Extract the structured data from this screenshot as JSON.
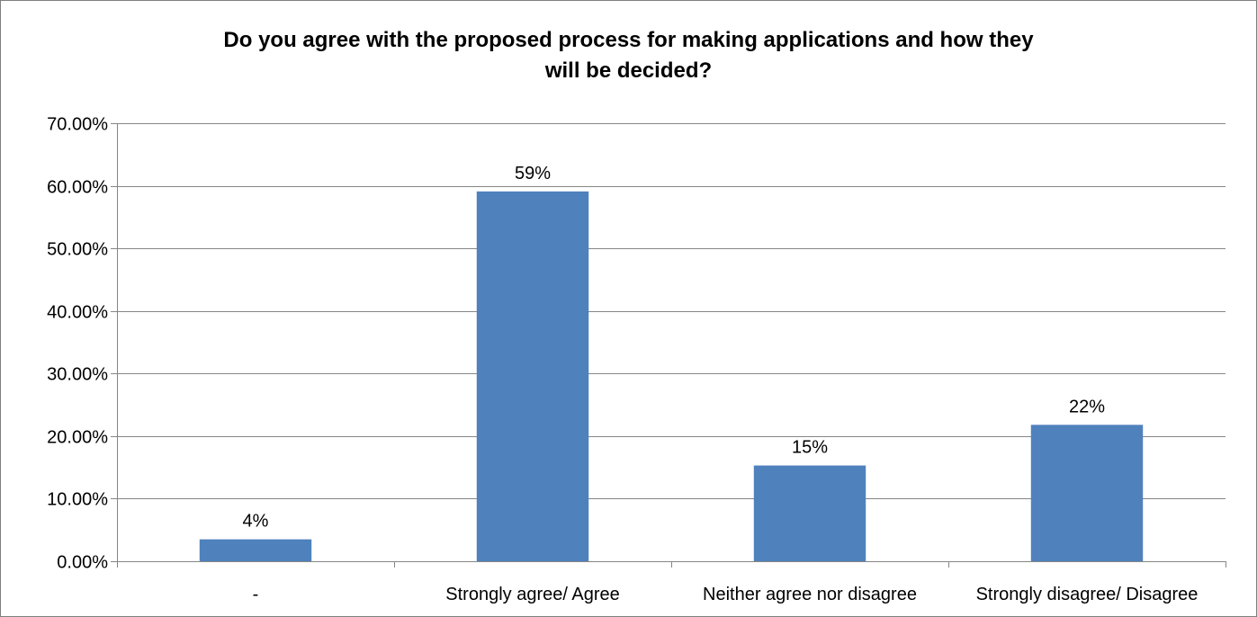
{
  "chart_data": {
    "type": "bar",
    "title_lines": [
      "Do you agree with the proposed process for making applications and how they",
      "will be decided?"
    ],
    "categories": [
      "-",
      "Strongly agree/ Agree",
      "Neither agree nor disagree",
      "Strongly disagree/ Disagree"
    ],
    "values": [
      3.5,
      59.1,
      15.3,
      21.8
    ],
    "data_labels": [
      "4%",
      "59%",
      "15%",
      "22%"
    ],
    "y_ticks": [
      "0.00%",
      "10.00%",
      "20.00%",
      "30.00%",
      "40.00%",
      "50.00%",
      "60.00%",
      "70.00%"
    ],
    "ylim": [
      0,
      70
    ],
    "ystep": 10,
    "grid": true,
    "legend": "none",
    "xlabel": "",
    "ylabel": "",
    "colors": {
      "bar": "#4f81bd",
      "grid": "#868686",
      "axis": "#868686"
    }
  }
}
